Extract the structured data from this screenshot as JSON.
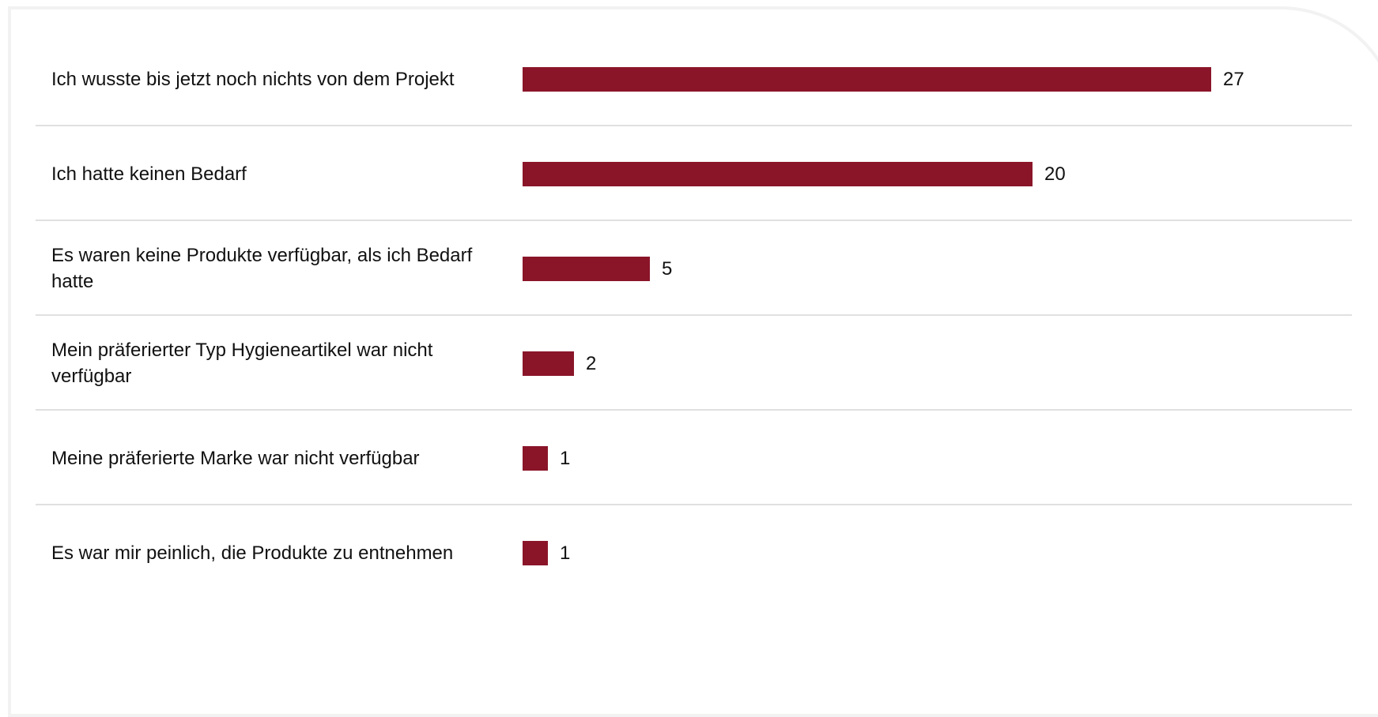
{
  "chart_data": {
    "type": "bar",
    "orientation": "horizontal",
    "categories": [
      "Ich wusste bis jetzt noch nichts von dem Projekt",
      "Ich hatte keinen Bedarf",
      "Es waren keine Produkte verfügbar, als ich Bedarf hatte",
      "Mein präferierter Typ Hygieneartikel war nicht verfügbar",
      "Meine präferierte Marke war nicht verfügbar",
      "Es war mir peinlich, die Produkte zu entnehmen"
    ],
    "values": [
      27,
      20,
      5,
      2,
      1,
      1
    ],
    "xlim": [
      0,
      27
    ],
    "grid": false,
    "bar_color": "#8a1529",
    "divider_color": "#e0e0e0"
  }
}
